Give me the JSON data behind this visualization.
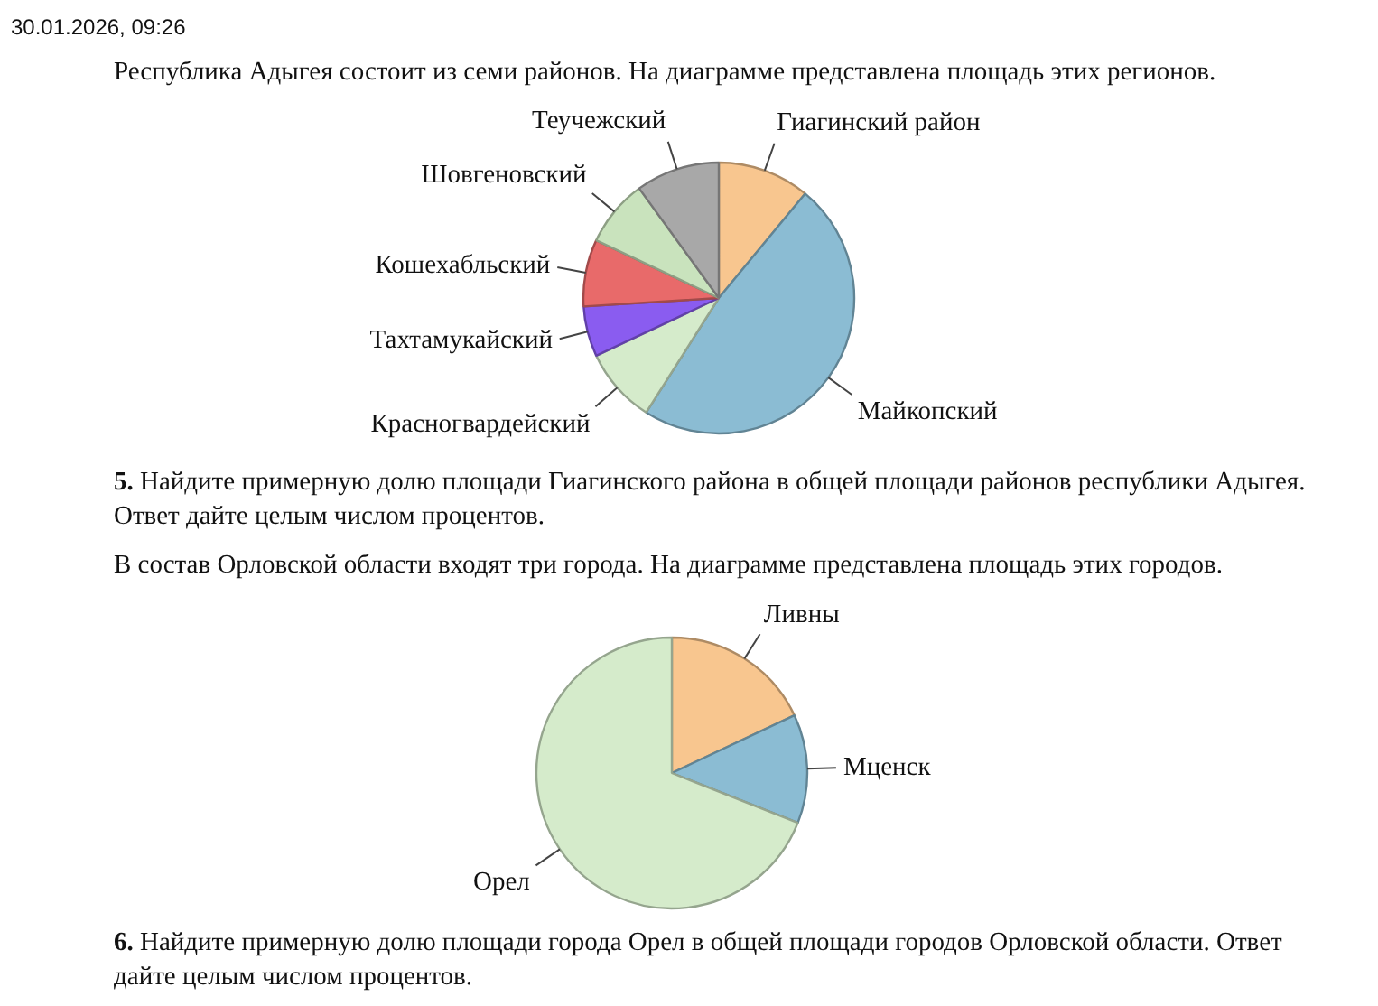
{
  "chart_data": [
    {
      "type": "pie",
      "title": "Республика Адыгея состоит из семи районов. На диаграмме представлена площадь этих регионов.",
      "categories": [
        "Гиагинский район",
        "Майкопский",
        "Красногвардейский",
        "Тахтамукайский",
        "Кошехабльский",
        "Шовгеновский",
        "Теучежский"
      ],
      "values": [
        11,
        48,
        9,
        6,
        8,
        8,
        10
      ],
      "colors": [
        "#f8c68f",
        "#8bbcd3",
        "#d5ebcb",
        "#8a5cf0",
        "#e86a6a",
        "#c9e3bd",
        "#a8a8a8"
      ],
      "annotations": [
        "30.01.2026, 09:26",
        "5. Найдите примерную долю площади Гиагинского района в общей площади районов республики Адыгея. Ответ дайте целым числом процентов."
      ]
    },
    {
      "type": "pie",
      "title": "В состав Орловской области входят три города. На диаграмме представлена площадь этих городов.",
      "categories": [
        "Ливны",
        "Мценск",
        "Орел"
      ],
      "values": [
        18,
        13,
        69
      ],
      "colors": [
        "#f8c68f",
        "#8bbcd3",
        "#d5ebcb"
      ],
      "annotations": [
        "6. Найдите примерную долю площади города Орел в общей площади городов Орловской области. Ответ дайте целым числом процентов."
      ]
    }
  ]
}
